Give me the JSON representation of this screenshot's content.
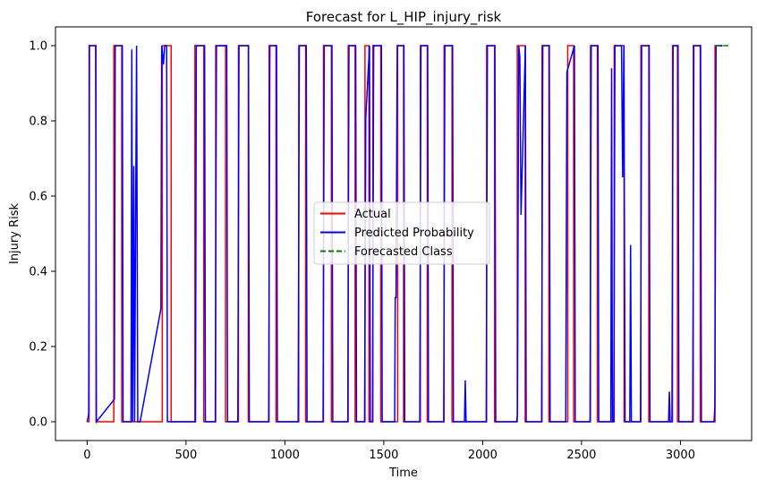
{
  "chart_data": {
    "type": "line",
    "title": "Forecast for L_HIP_injury_risk",
    "xlabel": "Time",
    "ylabel": "Injury Risk",
    "xlim": [
      -160,
      3360
    ],
    "ylim": [
      -0.05,
      1.05
    ],
    "xticks": [
      0,
      500,
      1000,
      1500,
      2000,
      2500,
      3000
    ],
    "yticks": [
      0.0,
      0.2,
      0.4,
      0.6,
      0.8,
      1.0
    ],
    "ytick_labels": [
      "0.0",
      "0.2",
      "0.4",
      "0.6",
      "0.8",
      "1.0"
    ],
    "grid": false,
    "legend_position": "center",
    "pulse_ranges": [
      [
        10,
        45
      ],
      [
        135,
        175
      ],
      [
        380,
        425
      ],
      [
        545,
        590
      ],
      [
        650,
        700
      ],
      [
        765,
        815
      ],
      [
        920,
        955
      ],
      [
        1070,
        1105
      ],
      [
        1195,
        1235
      ],
      [
        1320,
        1355
      ],
      [
        1405,
        1425
      ],
      [
        1445,
        1485
      ],
      [
        1570,
        1600
      ],
      [
        1685,
        1720
      ],
      [
        1805,
        1845
      ],
      [
        2020,
        2060
      ],
      [
        2175,
        2215
      ],
      [
        2300,
        2335
      ],
      [
        2430,
        2460
      ],
      [
        2545,
        2580
      ],
      [
        2665,
        2715
      ],
      [
        2800,
        2840
      ],
      [
        2960,
        2985
      ],
      [
        3065,
        3100
      ],
      [
        3175,
        3210
      ]
    ],
    "series": [
      {
        "name": "Actual",
        "color": "#ff0000",
        "style": "solid",
        "x": [
          0,
          10,
          10,
          45,
          45,
          135,
          135,
          175,
          175,
          380,
          380,
          425,
          425,
          545,
          545,
          590,
          590,
          650,
          650,
          700,
          700,
          765,
          765,
          815,
          815,
          920,
          920,
          955,
          955,
          1070,
          1070,
          1105,
          1105,
          1195,
          1195,
          1235,
          1235,
          1320,
          1320,
          1355,
          1355,
          1405,
          1405,
          1425,
          1425,
          1445,
          1445,
          1485,
          1485,
          1570,
          1570,
          1600,
          1600,
          1685,
          1685,
          1720,
          1720,
          1805,
          1805,
          1845,
          1845,
          2020,
          2020,
          2060,
          2060,
          2175,
          2175,
          2215,
          2215,
          2300,
          2300,
          2335,
          2335,
          2430,
          2430,
          2460,
          2460,
          2545,
          2545,
          2580,
          2580,
          2665,
          2665,
          2715,
          2715,
          2800,
          2800,
          2840,
          2840,
          2960,
          2960,
          2985,
          2985,
          3065,
          3065,
          3100,
          3100,
          3175,
          3175,
          3210
        ],
        "y": [
          0,
          0,
          1,
          1,
          0,
          0,
          1,
          1,
          0,
          0,
          1,
          1,
          0,
          0,
          1,
          1,
          0,
          0,
          1,
          1,
          0,
          0,
          1,
          1,
          0,
          0,
          1,
          1,
          0,
          0,
          1,
          1,
          0,
          0,
          1,
          1,
          0,
          0,
          1,
          1,
          0,
          0,
          1,
          1,
          0,
          0,
          1,
          1,
          0,
          0,
          1,
          1,
          0,
          0,
          1,
          1,
          0,
          0,
          1,
          1,
          0,
          0,
          1,
          1,
          0,
          0,
          1,
          1,
          0,
          0,
          1,
          1,
          0,
          0,
          1,
          1,
          0,
          0,
          1,
          1,
          0,
          0,
          1,
          1,
          0,
          0,
          1,
          1,
          0,
          0,
          1,
          1,
          0,
          0,
          1,
          1,
          0,
          0,
          1,
          1
        ]
      },
      {
        "name": "Predicted Probability",
        "color": "#0000ff",
        "style": "solid",
        "x": [
          0,
          8,
          12,
          43,
          47,
          138,
          142,
          178,
          182,
          222,
          226,
          230,
          236,
          240,
          250,
          256,
          262,
          268,
          373,
          377,
          386,
          392,
          402,
          406,
          430,
          434,
          548,
          552,
          594,
          598,
          648,
          654,
          706,
          710,
          762,
          768,
          816,
          820,
          918,
          924,
          958,
          962,
          1067,
          1073,
          1108,
          1112,
          1193,
          1199,
          1238,
          1242,
          1318,
          1324,
          1358,
          1362,
          1403,
          1409,
          1428,
          1432,
          1443,
          1449,
          1488,
          1492,
          1555,
          1558,
          1562,
          1568,
          1574,
          1602,
          1606,
          1682,
          1688,
          1722,
          1726,
          1803,
          1809,
          1848,
          1852,
          1908,
          1912,
          1916,
          2018,
          2024,
          2062,
          2066,
          2172,
          2176,
          2182,
          2188,
          2194,
          2216,
          2220,
          2298,
          2304,
          2337,
          2341,
          2420,
          2426,
          2464,
          2468,
          2543,
          2549,
          2583,
          2587,
          2648,
          2652,
          2656,
          2663,
          2669,
          2702,
          2708,
          2714,
          2720,
          2744,
          2748,
          2752,
          2798,
          2804,
          2842,
          2846,
          2940,
          2944,
          2948,
          2957,
          2963,
          2988,
          2992,
          3062,
          3068,
          3102,
          3106,
          3170,
          3174,
          3180,
          3213
        ],
        "y": [
          0.0,
          0.02,
          1.0,
          1.0,
          0.0,
          0.06,
          1.0,
          1.0,
          0.0,
          0.0,
          0.99,
          0.0,
          0.68,
          0.0,
          1.0,
          0.0,
          0.0,
          0.0,
          0.3,
          1.0,
          0.95,
          1.0,
          1.0,
          0.0,
          0.0,
          0.0,
          0.0,
          1.0,
          1.0,
          0.0,
          0.0,
          1.0,
          1.0,
          0.0,
          0.0,
          1.0,
          1.0,
          0.0,
          0.0,
          1.0,
          1.0,
          0.0,
          0.0,
          1.0,
          1.0,
          0.0,
          0.0,
          1.0,
          1.0,
          0.0,
          0.0,
          1.0,
          1.0,
          0.0,
          0.0,
          0.81,
          1.0,
          0.0,
          0.0,
          1.0,
          1.0,
          0.0,
          0.0,
          0.33,
          0.33,
          1.0,
          1.0,
          1.0,
          0.0,
          0.0,
          1.0,
          1.0,
          0.0,
          0.0,
          1.0,
          1.0,
          0.0,
          0.0,
          0.11,
          0.0,
          0.0,
          1.0,
          1.0,
          0.0,
          0.0,
          0.02,
          1.0,
          0.97,
          0.55,
          1.0,
          0.0,
          0.0,
          1.0,
          1.0,
          0.0,
          0.0,
          0.93,
          1.0,
          0.0,
          0.0,
          1.0,
          1.0,
          0.0,
          0.0,
          0.94,
          0.0,
          0.0,
          1.0,
          1.0,
          0.65,
          1.0,
          0.0,
          0.0,
          0.47,
          0.0,
          0.0,
          1.0,
          1.0,
          0.0,
          0.0,
          0.08,
          0.0,
          0.0,
          1.0,
          1.0,
          0.0,
          0.0,
          1.0,
          1.0,
          0.0,
          0.0,
          0.04,
          1.0,
          1.0
        ]
      },
      {
        "name": "Forecasted Class",
        "color": "#008000",
        "style": "dashed",
        "x": [
          3175,
          3250
        ],
        "y": [
          1,
          1
        ]
      }
    ]
  }
}
